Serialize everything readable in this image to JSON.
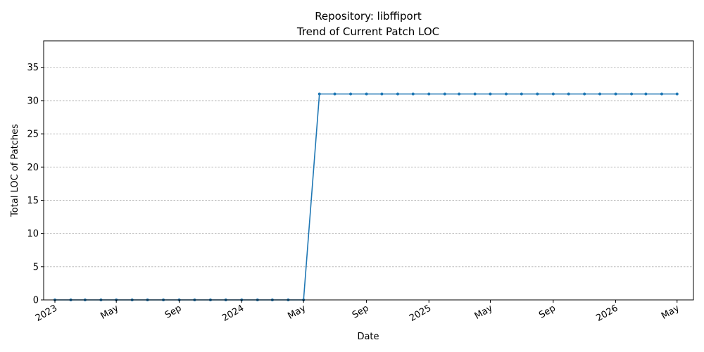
{
  "chart_data": {
    "type": "line",
    "title": "Repository: libffiport",
    "subtitle": "Trend of Current Patch LOC",
    "xlabel": "Date",
    "ylabel": "Total LOC of Patches",
    "ylim": [
      0,
      39
    ],
    "yticks": [
      0,
      5,
      10,
      15,
      20,
      25,
      30,
      35
    ],
    "xlim": [
      "2022-12-10",
      "2026-06-02"
    ],
    "xticks": [
      {
        "date": "2023-01-01",
        "label": "2023"
      },
      {
        "date": "2023-05-01",
        "label": "May"
      },
      {
        "date": "2023-09-01",
        "label": "Sep"
      },
      {
        "date": "2024-01-01",
        "label": "2024"
      },
      {
        "date": "2024-05-01",
        "label": "May"
      },
      {
        "date": "2024-09-01",
        "label": "Sep"
      },
      {
        "date": "2025-01-01",
        "label": "2025"
      },
      {
        "date": "2025-05-01",
        "label": "May"
      },
      {
        "date": "2025-09-01",
        "label": "Sep"
      },
      {
        "date": "2026-01-01",
        "label": "2026"
      },
      {
        "date": "2026-05-01",
        "label": "May"
      }
    ],
    "grid": "y",
    "color": "#1f77b4",
    "x": [
      "2023-01-01",
      "2023-02-01",
      "2023-03-01",
      "2023-04-01",
      "2023-05-01",
      "2023-06-01",
      "2023-07-01",
      "2023-08-01",
      "2023-09-01",
      "2023-10-01",
      "2023-11-01",
      "2023-12-01",
      "2024-01-01",
      "2024-02-01",
      "2024-03-01",
      "2024-04-01",
      "2024-05-01",
      "2024-06-01",
      "2024-07-01",
      "2024-08-01",
      "2024-09-01",
      "2024-10-01",
      "2024-11-01",
      "2024-12-01",
      "2025-01-01",
      "2025-02-01",
      "2025-03-01",
      "2025-04-01",
      "2025-05-01",
      "2025-06-01",
      "2025-07-01",
      "2025-08-01",
      "2025-09-01",
      "2025-10-01",
      "2025-11-01",
      "2025-12-01",
      "2026-01-01",
      "2026-02-01",
      "2026-03-01",
      "2026-04-01",
      "2026-05-01"
    ],
    "values": [
      0,
      0,
      0,
      0,
      0,
      0,
      0,
      0,
      0,
      0,
      0,
      0,
      0,
      0,
      0,
      0,
      0,
      31,
      31,
      31,
      31,
      31,
      31,
      31,
      31,
      31,
      31,
      31,
      31,
      31,
      31,
      31,
      31,
      31,
      31,
      31,
      31,
      31,
      31,
      31,
      31
    ]
  }
}
